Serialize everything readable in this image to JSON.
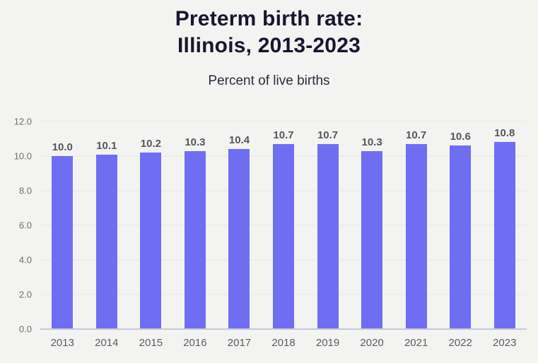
{
  "header": {
    "title_line1": "Preterm birth rate:",
    "title_line2": "Illinois, 2013-2023",
    "subtitle": "Percent of live births"
  },
  "chart_data": {
    "type": "bar",
    "title": "Preterm birth rate: Illinois, 2013-2023",
    "subtitle": "Percent of live births",
    "categories": [
      "2013",
      "2014",
      "2015",
      "2016",
      "2017",
      "2018",
      "2019",
      "2020",
      "2021",
      "2022",
      "2023"
    ],
    "values": [
      10.0,
      10.1,
      10.2,
      10.3,
      10.4,
      10.7,
      10.7,
      10.3,
      10.7,
      10.6,
      10.8
    ],
    "value_label_decimals": 1,
    "xlabel": "",
    "ylabel": "Percent of live births",
    "ylim": [
      0,
      12
    ],
    "ytick_step": 2,
    "ytick_labels": [
      "0.0",
      "2.0",
      "4.0",
      "6.0",
      "8.0",
      "10.0",
      "12.0"
    ],
    "grid": true,
    "legend": false,
    "colors": {
      "bar": "#6f6ef3",
      "background": "#f3f3f1",
      "title": "#16162e",
      "subtitle": "#2c2c3c",
      "value_label": "#55555a",
      "axis_label": "#6e6e6e",
      "gridline": "#e5e5e3",
      "baseline": "#c7cad6"
    }
  }
}
